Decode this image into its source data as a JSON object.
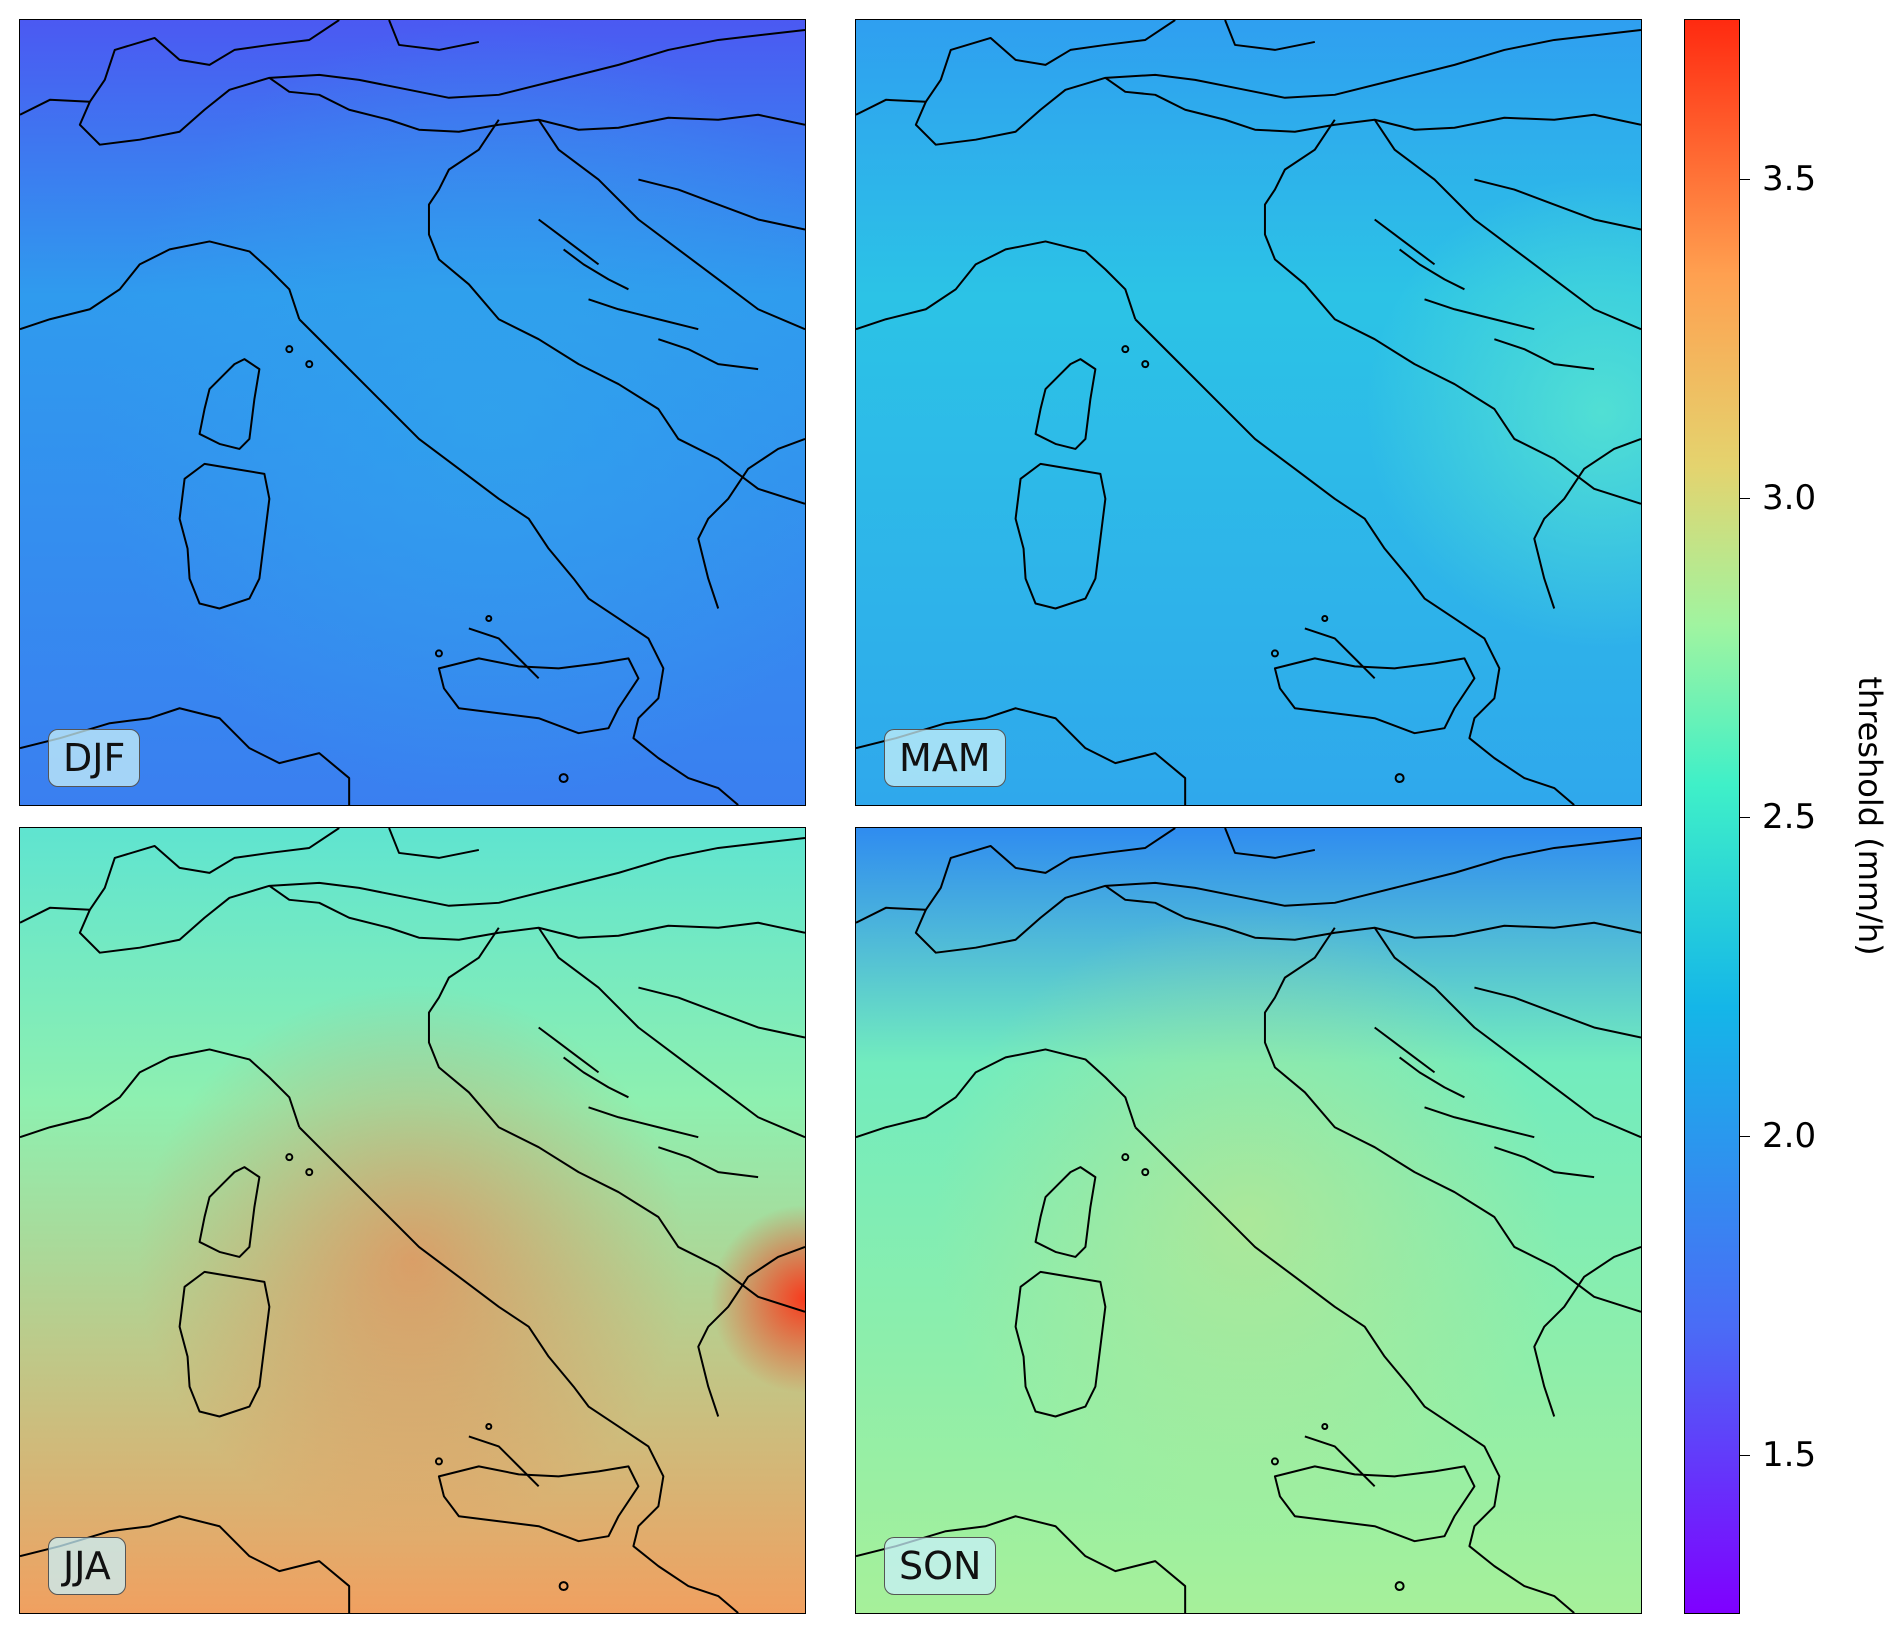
{
  "panels": [
    {
      "label": "DJF",
      "colors": {
        "base": "#2f9bee",
        "north": "#4b59f2",
        "south": "#3a7ff0",
        "hot": "#2fa6ec"
      }
    },
    {
      "label": "MAM",
      "colors": {
        "base": "#2cc3e6",
        "north": "#2f9ff0",
        "south": "#2fa8ec",
        "hot": "#5ae8cf"
      }
    },
    {
      "label": "JJA",
      "colors": {
        "base": "#8ef0b0",
        "north": "#5fe4d0",
        "south": "#f0a060",
        "hot": "#ff7040"
      }
    },
    {
      "label": "SON",
      "colors": {
        "base": "#72ecbe",
        "north": "#2f8cf0",
        "south": "#a6f09a",
        "hot": "#c8e488"
      }
    }
  ],
  "colorbar": {
    "label": "threshold (mm/h)",
    "ticks": [
      "1.5",
      "2.0",
      "2.5",
      "3.0",
      "3.5"
    ],
    "range": [
      1.25,
      3.75
    ]
  }
}
